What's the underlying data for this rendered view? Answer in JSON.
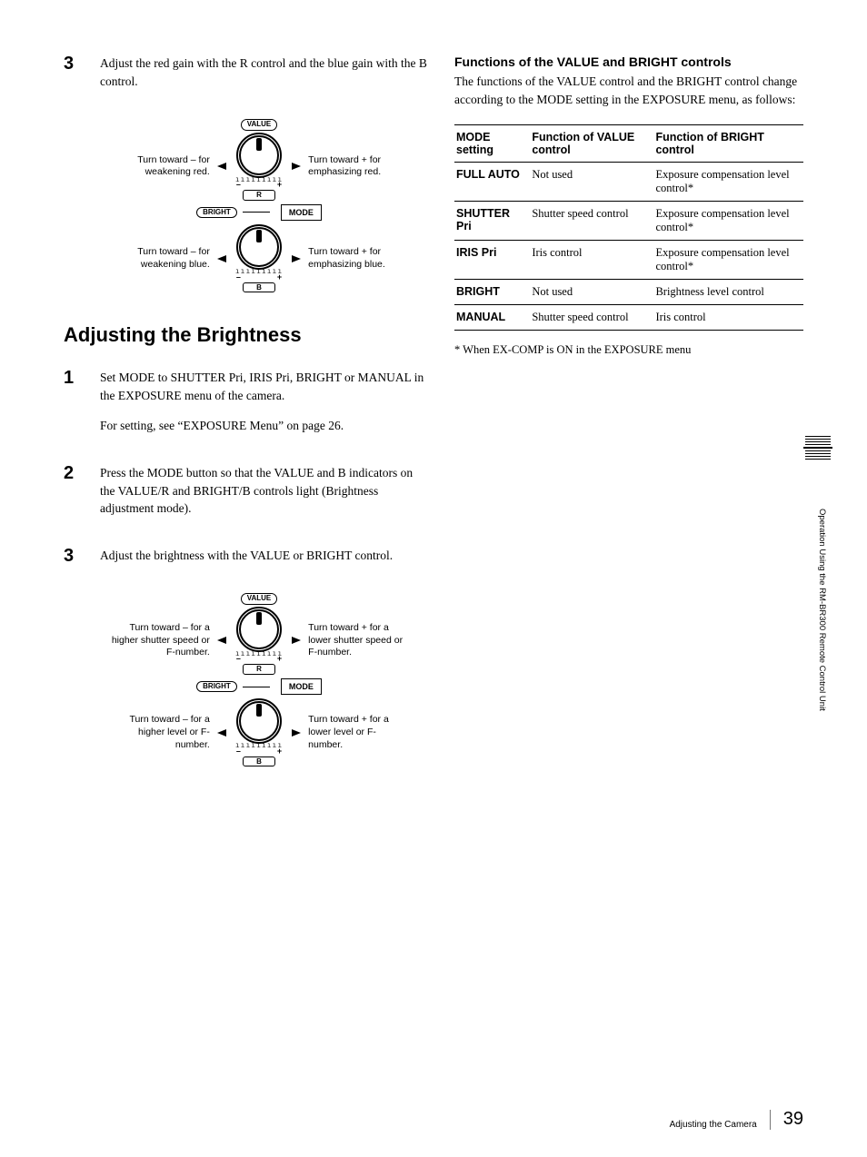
{
  "left": {
    "step3_top": "Adjust the red gain with the R control and the blue gain with the B control.",
    "section_title": "Adjusting the Brightness",
    "steps": [
      {
        "num": "1",
        "paras": [
          "Set MODE to SHUTTER Pri, IRIS Pri, BRIGHT or MANUAL in the EXPOSURE menu of the camera.",
          "For setting, see “EXPOSURE Menu” on page 26."
        ]
      },
      {
        "num": "2",
        "paras": [
          "Press the MODE button so that the VALUE and B indicators on the VALUE/R and BRIGHT/B controls light (Brightness adjustment mode)."
        ]
      },
      {
        "num": "3",
        "paras": [
          "Adjust the brightness with the VALUE or BRIGHT control."
        ]
      }
    ],
    "diagram1": {
      "top_label": "VALUE",
      "mid_label": "BRIGHT",
      "mode_label": "MODE",
      "letters": [
        "R",
        "B"
      ],
      "minus": "–",
      "plus": "+",
      "captions": {
        "tl": "Turn toward – for weakening red.",
        "tr": "Turn toward + for emphasizing red.",
        "bl": "Turn toward – for weakening blue.",
        "br": "Turn toward + for emphasizing blue."
      }
    },
    "diagram2": {
      "top_label": "VALUE",
      "mid_label": "BRIGHT",
      "mode_label": "MODE",
      "letters": [
        "R",
        "B"
      ],
      "minus": "–",
      "plus": "+",
      "captions": {
        "tl": "Turn toward – for a higher shutter speed or F-number.",
        "tr": "Turn toward + for a lower shutter speed or F-number.",
        "bl": "Turn toward – for a higher level or F-number.",
        "br": "Turn toward + for a lower level or F-number."
      }
    }
  },
  "right": {
    "heading": "Functions of the VALUE and BRIGHT controls",
    "intro": "The functions of the VALUE control and the BRIGHT control change according to the MODE setting in the EXPOSURE menu, as follows:",
    "table": {
      "headers": [
        "MODE setting",
        "Function of VALUE control",
        "Function of BRIGHT control"
      ],
      "rows": [
        [
          "FULL AUTO",
          "Not used",
          "Exposure compensation level control*"
        ],
        [
          "SHUTTER Pri",
          "Shutter speed control",
          "Exposure compensation level control*"
        ],
        [
          "IRIS Pri",
          "Iris control",
          "Exposure compensation level control*"
        ],
        [
          "BRIGHT",
          "Not used",
          "Brightness level control"
        ],
        [
          "MANUAL",
          "Shutter speed control",
          "Iris control"
        ]
      ]
    },
    "footnote": "* When EX-COMP is ON in the EXPOSURE menu"
  },
  "side_label": "Operation Using the RM-BR300 Remote Control Unit",
  "footer": {
    "text": "Adjusting the Camera",
    "page": "39"
  }
}
